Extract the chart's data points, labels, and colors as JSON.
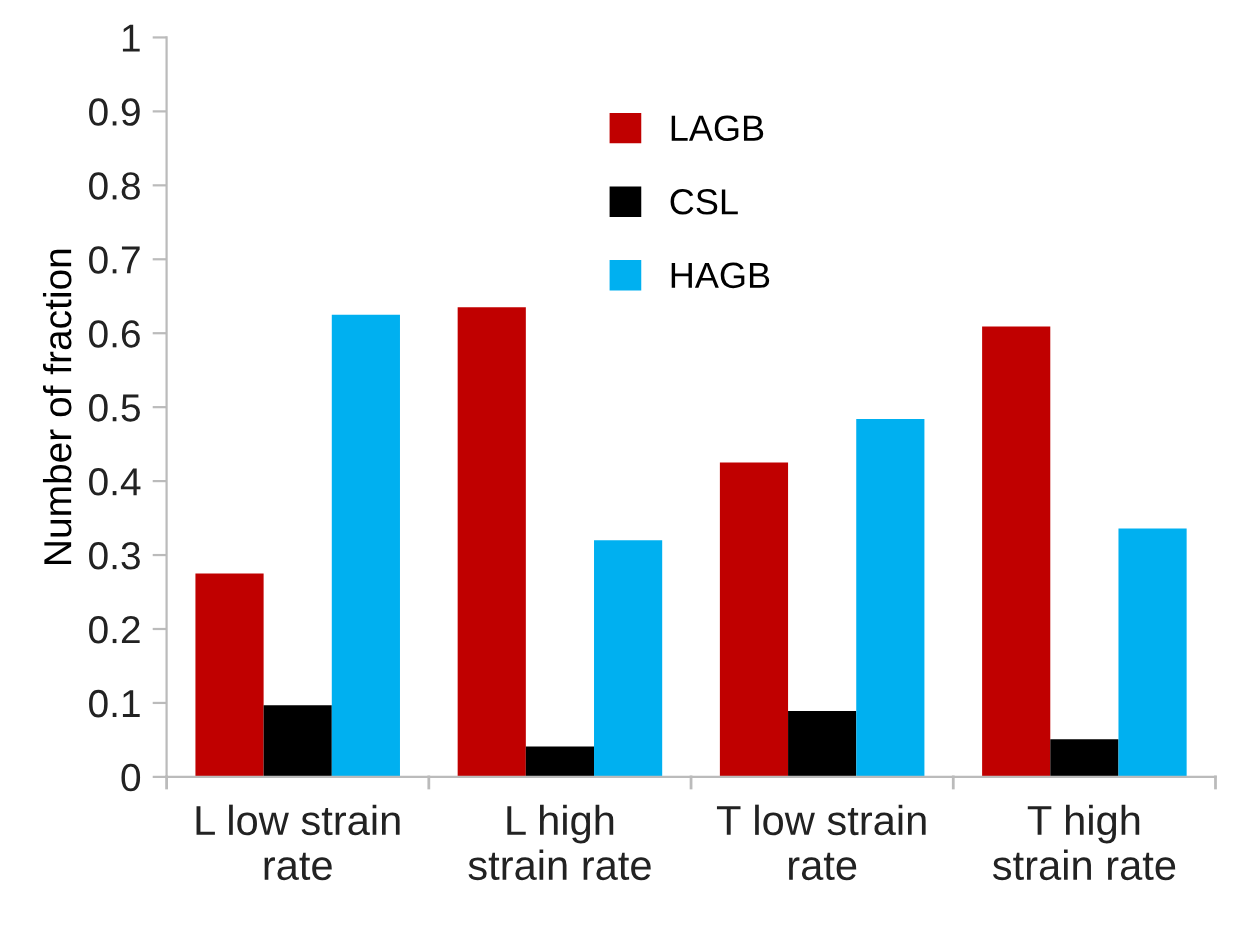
{
  "chart_data": {
    "type": "bar",
    "ylabel": "Number of fraction",
    "categories": [
      "L low strain\nrate",
      "L high\nstrain rate",
      "T low strain\nrate",
      "T high\nstrain rate"
    ],
    "series": [
      {
        "name": "LAGB",
        "color": "#c00000",
        "values": [
          0.275,
          0.635,
          0.425,
          0.609
        ]
      },
      {
        "name": "CSL",
        "color": "#000000",
        "values": [
          0.097,
          0.041,
          0.089,
          0.051
        ]
      },
      {
        "name": "HAGB",
        "color": "#00b0f0",
        "values": [
          0.625,
          0.32,
          0.484,
          0.336
        ]
      }
    ],
    "ylim": [
      0,
      1
    ],
    "yticks": [
      0,
      {
        "value": 0.1,
        "label": "0.1"
      },
      {
        "value": 0.2,
        "label": "0.2"
      },
      {
        "value": 0.3,
        "label": "0.3"
      },
      {
        "value": 0.4,
        "label": "0.4"
      },
      {
        "value": 0.5,
        "label": "0.5"
      },
      {
        "value": 0.6,
        "label": "0.6"
      },
      {
        "value": 0.7,
        "label": "0.7"
      },
      {
        "value": 0.8,
        "label": "0.8"
      },
      {
        "value": 0.9,
        "label": "0.9"
      },
      1
    ],
    "grid": false,
    "legend": "top"
  }
}
